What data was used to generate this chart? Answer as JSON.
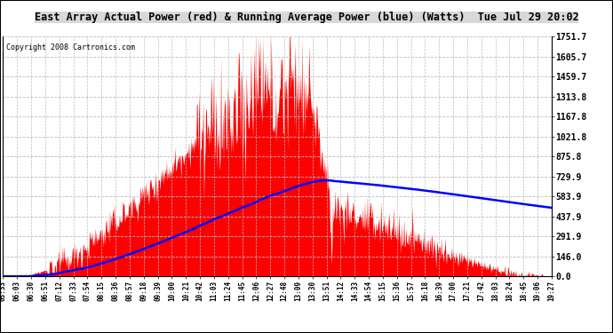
{
  "title": "East Array Actual Power (red) & Running Average Power (blue) (Watts)  Tue Jul 29 20:02",
  "copyright": "Copyright 2008 Cartronics.com",
  "ylabel_values": [
    0.0,
    146.0,
    291.9,
    437.9,
    583.9,
    729.9,
    875.8,
    1021.8,
    1167.8,
    1313.8,
    1459.7,
    1605.7,
    1751.7
  ],
  "ymax": 1751.7,
  "ymin": 0.0,
  "red_color": "#FF0000",
  "blue_color": "#0000FF",
  "bg_color": "#FFFFFF",
  "grid_color": "#BBBBBB",
  "x_labels": [
    "05:33",
    "06:03",
    "06:30",
    "06:51",
    "07:12",
    "07:33",
    "07:54",
    "08:15",
    "08:36",
    "08:57",
    "09:18",
    "09:39",
    "10:00",
    "10:21",
    "10:42",
    "11:03",
    "11:24",
    "11:45",
    "12:06",
    "12:27",
    "12:48",
    "13:09",
    "13:30",
    "13:51",
    "14:12",
    "14:33",
    "14:54",
    "15:15",
    "15:36",
    "15:57",
    "16:18",
    "16:39",
    "17:00",
    "17:21",
    "17:42",
    "18:03",
    "18:24",
    "18:45",
    "19:06",
    "19:27"
  ]
}
